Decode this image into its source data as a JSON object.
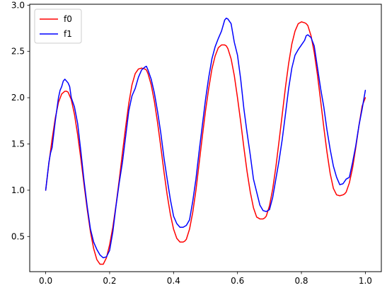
{
  "chart_data": {
    "type": "line",
    "title": "",
    "xlabel": "",
    "ylabel": "",
    "xlim": [
      -0.05,
      1.05
    ],
    "ylim": [
      0.12,
      3.01
    ],
    "x_ticks": [
      0.0,
      0.2,
      0.4,
      0.6,
      0.8,
      1.0
    ],
    "x_tick_labels": [
      "0.0",
      "0.2",
      "0.4",
      "0.6",
      "0.8",
      "1.0"
    ],
    "y_ticks": [
      0.5,
      1.0,
      1.5,
      2.0,
      2.5,
      3.0
    ],
    "y_tick_labels": [
      "0.5",
      "1.0",
      "1.5",
      "2.0",
      "2.5",
      "3.0"
    ],
    "grid": false,
    "legend": {
      "position": "top-left",
      "entries": [
        "f0",
        "f1"
      ]
    },
    "series": [
      {
        "name": "f0",
        "color": "#ff0000",
        "x": [
          0.0,
          0.01,
          0.02,
          0.03,
          0.04,
          0.05,
          0.06,
          0.065,
          0.07,
          0.08,
          0.09,
          0.1,
          0.11,
          0.12,
          0.13,
          0.14,
          0.15,
          0.16,
          0.17,
          0.18,
          0.19,
          0.2,
          0.21,
          0.22,
          0.23,
          0.24,
          0.25,
          0.26,
          0.27,
          0.28,
          0.29,
          0.3,
          0.31,
          0.315,
          0.32,
          0.33,
          0.34,
          0.35,
          0.36,
          0.37,
          0.38,
          0.39,
          0.4,
          0.41,
          0.42,
          0.43,
          0.435,
          0.44,
          0.45,
          0.46,
          0.47,
          0.48,
          0.49,
          0.5,
          0.51,
          0.52,
          0.53,
          0.54,
          0.55,
          0.56,
          0.565,
          0.57,
          0.58,
          0.59,
          0.6,
          0.61,
          0.62,
          0.63,
          0.64,
          0.65,
          0.66,
          0.67,
          0.68,
          0.685,
          0.69,
          0.7,
          0.71,
          0.72,
          0.73,
          0.74,
          0.75,
          0.76,
          0.77,
          0.78,
          0.79,
          0.8,
          0.81,
          0.815,
          0.82,
          0.83,
          0.84,
          0.85,
          0.86,
          0.87,
          0.88,
          0.89,
          0.9,
          0.91,
          0.92,
          0.93,
          0.935,
          0.94,
          0.95,
          0.96,
          0.97,
          0.98,
          0.99,
          1.0
        ],
        "y": [
          1.0,
          1.29,
          1.55,
          1.78,
          1.95,
          2.04,
          2.07,
          2.07,
          2.06,
          1.98,
          1.82,
          1.6,
          1.34,
          1.06,
          0.79,
          0.55,
          0.37,
          0.25,
          0.2,
          0.2,
          0.27,
          0.41,
          0.6,
          0.84,
          1.11,
          1.4,
          1.68,
          1.94,
          2.14,
          2.26,
          2.31,
          2.32,
          2.31,
          2.3,
          2.26,
          2.14,
          1.96,
          1.73,
          1.47,
          1.2,
          0.95,
          0.74,
          0.58,
          0.48,
          0.44,
          0.44,
          0.45,
          0.47,
          0.58,
          0.76,
          1.0,
          1.29,
          1.58,
          1.86,
          2.1,
          2.31,
          2.45,
          2.54,
          2.57,
          2.57,
          2.56,
          2.53,
          2.42,
          2.24,
          2.0,
          1.74,
          1.46,
          1.2,
          0.98,
          0.81,
          0.71,
          0.69,
          0.69,
          0.7,
          0.72,
          0.83,
          1.01,
          1.25,
          1.53,
          1.82,
          2.11,
          2.37,
          2.58,
          2.72,
          2.8,
          2.82,
          2.81,
          2.8,
          2.78,
          2.67,
          2.49,
          2.25,
          1.97,
          1.68,
          1.41,
          1.18,
          1.02,
          0.95,
          0.94,
          0.95,
          0.96,
          0.98,
          1.08,
          1.24,
          1.46,
          1.7,
          1.91,
          2.0
        ]
      },
      {
        "name": "f1",
        "color": "#0000ff",
        "x": [
          0.0,
          0.01,
          0.015,
          0.02,
          0.03,
          0.04,
          0.045,
          0.05,
          0.055,
          0.06,
          0.065,
          0.07,
          0.075,
          0.08,
          0.09,
          0.1,
          0.11,
          0.12,
          0.13,
          0.14,
          0.15,
          0.16,
          0.17,
          0.18,
          0.19,
          0.2,
          0.21,
          0.22,
          0.23,
          0.24,
          0.25,
          0.26,
          0.27,
          0.28,
          0.29,
          0.3,
          0.31,
          0.315,
          0.32,
          0.33,
          0.34,
          0.35,
          0.36,
          0.37,
          0.38,
          0.39,
          0.4,
          0.41,
          0.42,
          0.43,
          0.44,
          0.45,
          0.46,
          0.47,
          0.48,
          0.49,
          0.5,
          0.51,
          0.52,
          0.53,
          0.54,
          0.55,
          0.56,
          0.565,
          0.57,
          0.58,
          0.59,
          0.6,
          0.61,
          0.62,
          0.63,
          0.64,
          0.65,
          0.66,
          0.67,
          0.68,
          0.69,
          0.7,
          0.71,
          0.72,
          0.73,
          0.74,
          0.75,
          0.76,
          0.77,
          0.78,
          0.79,
          0.8,
          0.81,
          0.815,
          0.82,
          0.83,
          0.84,
          0.85,
          0.86,
          0.87,
          0.88,
          0.89,
          0.9,
          0.91,
          0.92,
          0.93,
          0.94,
          0.95,
          0.96,
          0.97,
          0.98,
          0.99,
          1.0
        ],
        "y": [
          1.0,
          1.3,
          1.4,
          1.46,
          1.75,
          2.0,
          2.08,
          2.12,
          2.18,
          2.2,
          2.18,
          2.16,
          2.12,
          2.0,
          1.9,
          1.72,
          1.42,
          1.1,
          0.82,
          0.58,
          0.44,
          0.36,
          0.3,
          0.27,
          0.28,
          0.35,
          0.55,
          0.83,
          1.08,
          1.3,
          1.58,
          1.86,
          2.02,
          2.1,
          2.22,
          2.3,
          2.33,
          2.34,
          2.3,
          2.2,
          2.05,
          1.85,
          1.62,
          1.35,
          1.12,
          0.9,
          0.72,
          0.64,
          0.6,
          0.6,
          0.62,
          0.68,
          0.88,
          1.12,
          1.42,
          1.7,
          1.98,
          2.22,
          2.42,
          2.55,
          2.64,
          2.72,
          2.84,
          2.86,
          2.85,
          2.8,
          2.6,
          2.46,
          2.2,
          1.88,
          1.62,
          1.38,
          1.12,
          0.98,
          0.84,
          0.78,
          0.77,
          0.79,
          0.92,
          1.12,
          1.32,
          1.55,
          1.82,
          2.1,
          2.32,
          2.46,
          2.52,
          2.57,
          2.62,
          2.67,
          2.68,
          2.65,
          2.56,
          2.33,
          2.1,
          1.9,
          1.65,
          1.44,
          1.26,
          1.14,
          1.06,
          1.07,
          1.12,
          1.14,
          1.3,
          1.48,
          1.7,
          1.88,
          2.08
        ]
      }
    ]
  }
}
